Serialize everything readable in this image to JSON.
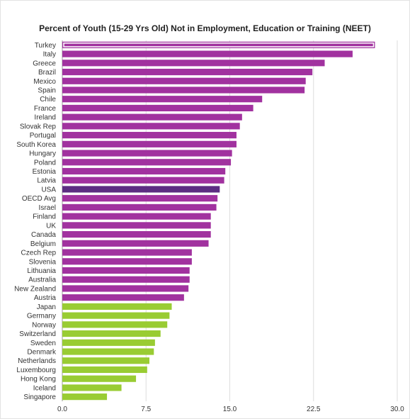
{
  "chart_data": {
    "type": "bar",
    "orientation": "horizontal",
    "title": "Percent of Youth (15-29 Yrs Old) Not in Employment, Education or Training (NEET)",
    "xlabel": "",
    "ylabel": "",
    "xlim": [
      0,
      30
    ],
    "x_ticks": [
      "0.0",
      "7.5",
      "15.0",
      "22.5",
      "30.0"
    ],
    "grid": "vertical",
    "categories": [
      "Turkey",
      "Italy",
      "Greece",
      "Brazil",
      "Mexico",
      "Spain",
      "Chile",
      "France",
      "Ireland",
      "Slovak Rep",
      "Portugal",
      "South Korea",
      "Hungary",
      "Poland",
      "Estonia",
      "Latvia",
      "USA",
      "OECD Avg",
      "Israel",
      "Finland",
      "UK",
      "Canada",
      "Belgium",
      "Czech Rep",
      "Slovenia",
      "Lithuania",
      "Australia",
      "New Zealand",
      "Austria",
      "Japan",
      "Germany",
      "Norway",
      "Switzerland",
      "Sweden",
      "Denmark",
      "Netherlands",
      "Luxembourg",
      "Hong Kong",
      "Iceland",
      "Singapore"
    ],
    "values": [
      28.0,
      26.0,
      23.5,
      22.4,
      21.8,
      21.7,
      17.9,
      17.1,
      16.1,
      15.9,
      15.6,
      15.6,
      15.2,
      15.1,
      14.6,
      14.5,
      14.1,
      13.9,
      13.8,
      13.3,
      13.3,
      13.3,
      13.1,
      11.6,
      11.6,
      11.4,
      11.4,
      11.3,
      10.9,
      9.8,
      9.6,
      9.4,
      8.8,
      8.3,
      8.2,
      7.8,
      7.6,
      6.6,
      5.3,
      4.0
    ],
    "colors": {
      "default": "#a1329f",
      "highlight": "#5c2d82",
      "low": "#99cc33",
      "selected_outline": "#ffffff"
    },
    "highlight_categories": [
      "USA"
    ],
    "low_categories": [
      "Japan",
      "Germany",
      "Norway",
      "Switzerland",
      "Sweden",
      "Denmark",
      "Netherlands",
      "Luxembourg",
      "Hong Kong",
      "Iceland",
      "Singapore"
    ],
    "selected_category": "Turkey"
  }
}
